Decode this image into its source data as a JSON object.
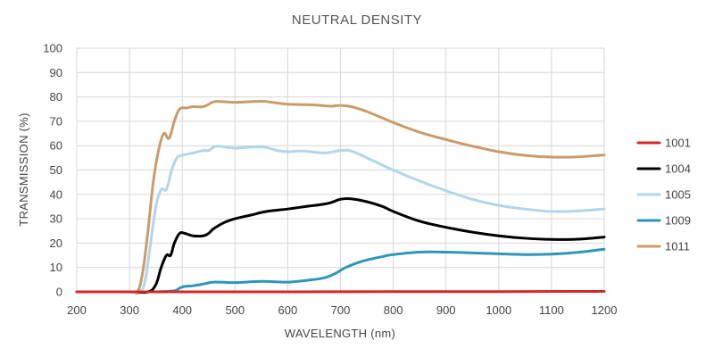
{
  "chart_data": {
    "type": "line",
    "title": "NEUTRAL DENSITY",
    "xlabel": "WAVELENGTH (nm)",
    "ylabel": "TRANSMISSION (%)",
    "xlim": [
      200,
      1200
    ],
    "ylim": [
      0,
      100
    ],
    "grid": true,
    "legend_position": "right",
    "x_ticks": [
      200,
      300,
      400,
      500,
      600,
      700,
      800,
      900,
      1000,
      1100,
      1200
    ],
    "y_ticks": [
      0,
      10,
      20,
      30,
      40,
      50,
      60,
      70,
      80,
      90,
      100
    ],
    "x_tick_labels": [
      "200",
      "300",
      "400",
      "500",
      "600",
      "700",
      "800",
      "900",
      "1000",
      "1100",
      "1200"
    ],
    "y_tick_labels": [
      "0",
      "10",
      "20",
      "30",
      "40",
      "50",
      "60",
      "70",
      "80",
      "90",
      "100"
    ],
    "series": [
      {
        "name": "1001",
        "color": "#d62728",
        "points": [
          [
            200,
            0
          ],
          [
            400,
            0
          ],
          [
            600,
            0
          ],
          [
            800,
            0.1
          ],
          [
            1000,
            0.1
          ],
          [
            1200,
            0.2
          ]
        ]
      },
      {
        "name": "1004",
        "color": "#000000",
        "points": [
          [
            200,
            0
          ],
          [
            300,
            0
          ],
          [
            335,
            0
          ],
          [
            350,
            3
          ],
          [
            360,
            10
          ],
          [
            370,
            15
          ],
          [
            378,
            15
          ],
          [
            385,
            20
          ],
          [
            395,
            24
          ],
          [
            405,
            24
          ],
          [
            420,
            23
          ],
          [
            440,
            23
          ],
          [
            450,
            24
          ],
          [
            460,
            26
          ],
          [
            480,
            28.5
          ],
          [
            500,
            30
          ],
          [
            530,
            31.5
          ],
          [
            560,
            33
          ],
          [
            600,
            34
          ],
          [
            640,
            35.2
          ],
          [
            660,
            35.7
          ],
          [
            680,
            36.5
          ],
          [
            700,
            38
          ],
          [
            720,
            38.2
          ],
          [
            750,
            37
          ],
          [
            780,
            35
          ],
          [
            800,
            33
          ],
          [
            850,
            29
          ],
          [
            900,
            26.5
          ],
          [
            950,
            24.5
          ],
          [
            1000,
            23
          ],
          [
            1050,
            22
          ],
          [
            1100,
            21.5
          ],
          [
            1150,
            21.6
          ],
          [
            1200,
            22.5
          ]
        ]
      },
      {
        "name": "1005",
        "color": "#b3d5ea",
        "points": [
          [
            200,
            0
          ],
          [
            300,
            0
          ],
          [
            320,
            0
          ],
          [
            330,
            5
          ],
          [
            340,
            20
          ],
          [
            350,
            35
          ],
          [
            360,
            42
          ],
          [
            370,
            42
          ],
          [
            380,
            50
          ],
          [
            390,
            55
          ],
          [
            400,
            56
          ],
          [
            420,
            57
          ],
          [
            440,
            58
          ],
          [
            450,
            58
          ],
          [
            460,
            59.5
          ],
          [
            470,
            59.8
          ],
          [
            480,
            59.5
          ],
          [
            500,
            59
          ],
          [
            550,
            59.5
          ],
          [
            580,
            58
          ],
          [
            600,
            57.5
          ],
          [
            630,
            57.8
          ],
          [
            670,
            57
          ],
          [
            700,
            58
          ],
          [
            720,
            57.8
          ],
          [
            750,
            55
          ],
          [
            800,
            50
          ],
          [
            850,
            45.5
          ],
          [
            900,
            41.5
          ],
          [
            950,
            38
          ],
          [
            1000,
            35.5
          ],
          [
            1050,
            34
          ],
          [
            1100,
            33
          ],
          [
            1150,
            33.2
          ],
          [
            1200,
            34
          ]
        ]
      },
      {
        "name": "1009",
        "color": "#2e97b8",
        "points": [
          [
            200,
            0
          ],
          [
            300,
            0
          ],
          [
            350,
            0
          ],
          [
            380,
            0.3
          ],
          [
            390,
            0.8
          ],
          [
            400,
            2
          ],
          [
            420,
            2.5
          ],
          [
            440,
            3.2
          ],
          [
            460,
            4
          ],
          [
            500,
            3.8
          ],
          [
            550,
            4.3
          ],
          [
            600,
            4
          ],
          [
            640,
            4.8
          ],
          [
            670,
            5.8
          ],
          [
            690,
            7.5
          ],
          [
            710,
            10
          ],
          [
            740,
            12.5
          ],
          [
            780,
            14.5
          ],
          [
            800,
            15.3
          ],
          [
            850,
            16.3
          ],
          [
            900,
            16.3
          ],
          [
            950,
            16
          ],
          [
            1000,
            15.6
          ],
          [
            1050,
            15.3
          ],
          [
            1100,
            15.5
          ],
          [
            1150,
            16.2
          ],
          [
            1200,
            17.5
          ]
        ]
      },
      {
        "name": "1011",
        "color": "#c99c6a",
        "points": [
          [
            200,
            0
          ],
          [
            300,
            0
          ],
          [
            315,
            0
          ],
          [
            325,
            8
          ],
          [
            335,
            25
          ],
          [
            345,
            45
          ],
          [
            355,
            58
          ],
          [
            365,
            65
          ],
          [
            375,
            63
          ],
          [
            385,
            70
          ],
          [
            395,
            75
          ],
          [
            410,
            75.5
          ],
          [
            420,
            76
          ],
          [
            440,
            76
          ],
          [
            460,
            78
          ],
          [
            480,
            78
          ],
          [
            500,
            77.8
          ],
          [
            550,
            78.2
          ],
          [
            570,
            77.8
          ],
          [
            600,
            77
          ],
          [
            650,
            76.7
          ],
          [
            680,
            76.2
          ],
          [
            700,
            76.5
          ],
          [
            720,
            76
          ],
          [
            750,
            74
          ],
          [
            800,
            69.5
          ],
          [
            850,
            65.5
          ],
          [
            900,
            62.5
          ],
          [
            950,
            59.8
          ],
          [
            1000,
            57.5
          ],
          [
            1050,
            56
          ],
          [
            1100,
            55.3
          ],
          [
            1150,
            55.4
          ],
          [
            1200,
            56.2
          ]
        ]
      }
    ]
  }
}
